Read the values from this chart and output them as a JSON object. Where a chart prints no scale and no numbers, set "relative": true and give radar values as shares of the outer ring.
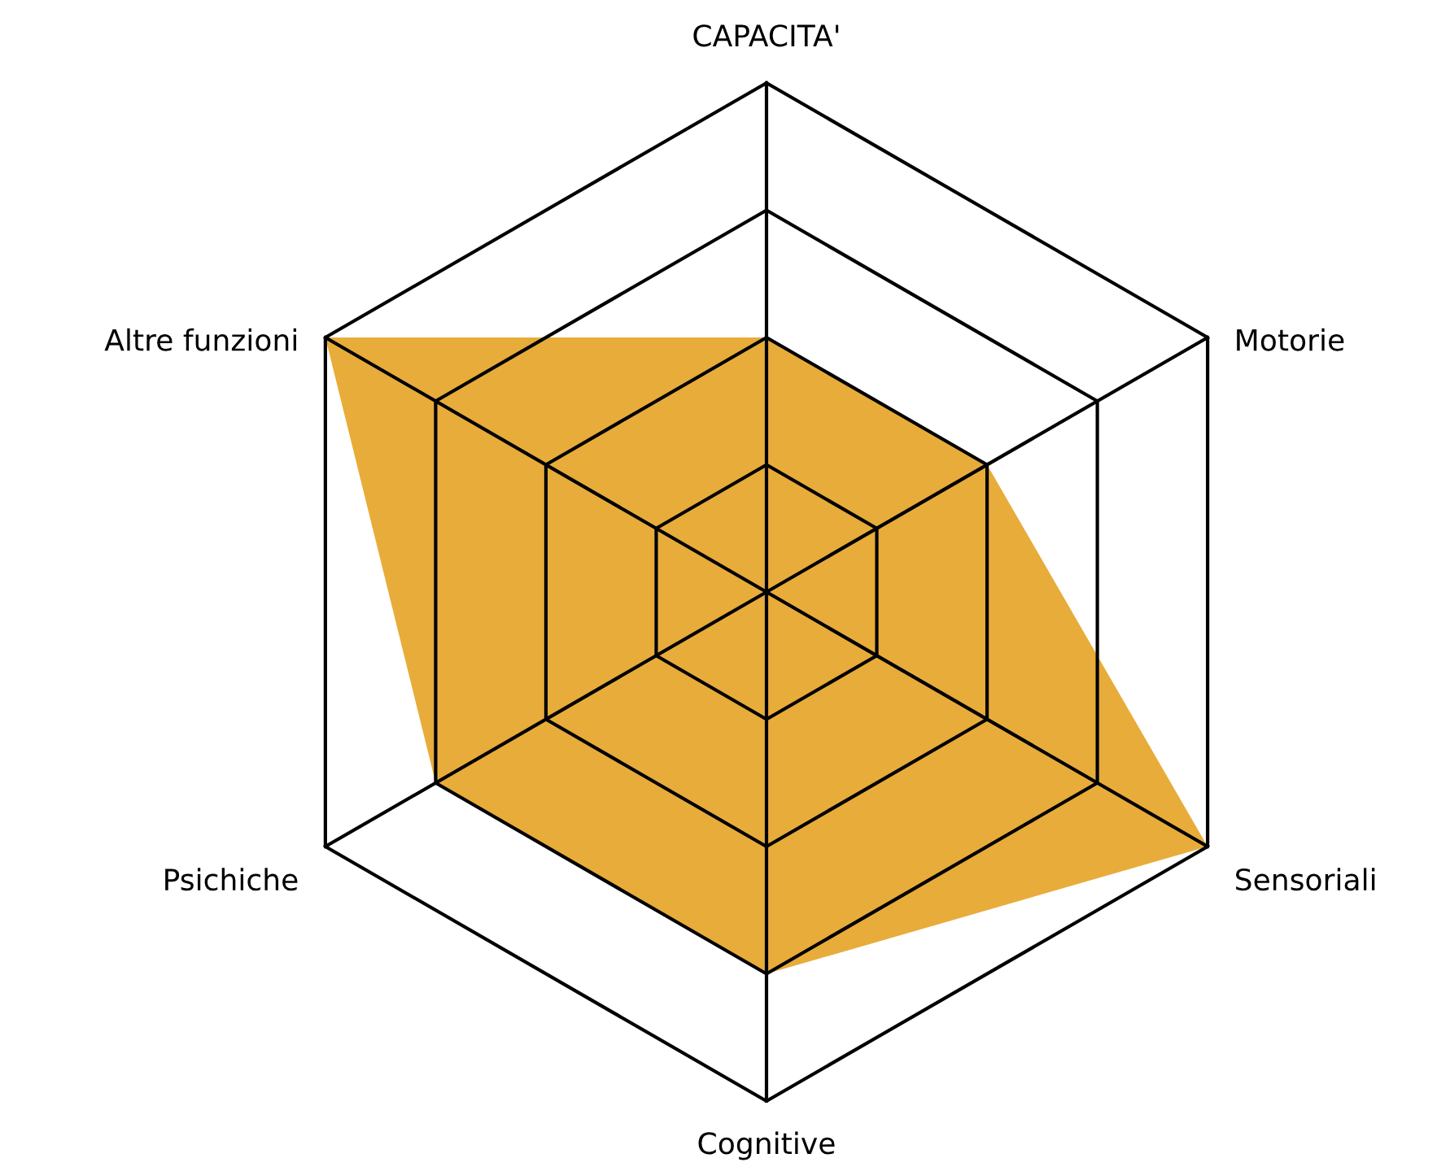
{
  "chart_data": {
    "type": "radar",
    "relative": true,
    "grid": true,
    "categories": [
      "CAPACITA'",
      "Motorie",
      "Sensoriali",
      "Cognitive",
      "Psichiche",
      "Altre funzioni"
    ],
    "series": [
      {
        "color": "#e8ac3a",
        "values": [
          0.5,
          0.5,
          1,
          0.75,
          0.75,
          1
        ]
      }
    ]
  }
}
